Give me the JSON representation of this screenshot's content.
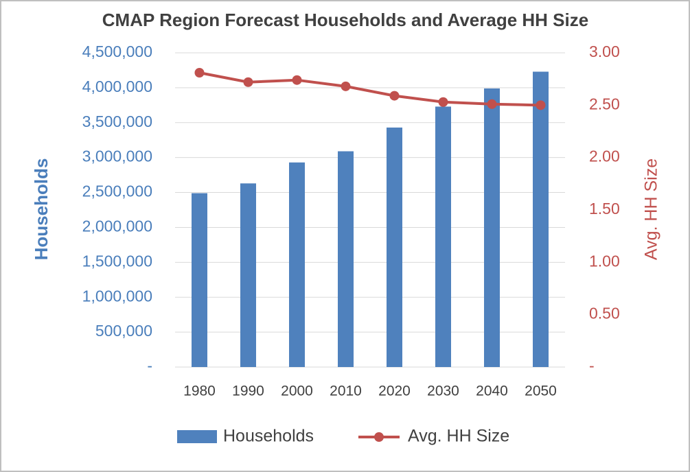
{
  "chart_data": {
    "type": "bar-line",
    "title": "CMAP Region Forecast Households and Average HH Size",
    "categories": [
      "1980",
      "1990",
      "2000",
      "2010",
      "2020",
      "2030",
      "2040",
      "2050"
    ],
    "series": [
      {
        "name": "Households",
        "type": "bar",
        "color": "#4f81bd",
        "values": [
          2490000,
          2630000,
          2930000,
          3090000,
          3430000,
          3730000,
          3990000,
          4230000
        ]
      },
      {
        "name": "Avg. HH Size",
        "type": "line",
        "axis": "y2",
        "color": "#c0504d",
        "values": [
          2.81,
          2.72,
          2.74,
          2.68,
          2.59,
          2.53,
          2.51,
          2.5
        ]
      }
    ],
    "ylabel": "Households",
    "y2label": "Avg. HH Size",
    "ylim": [
      0,
      4500000
    ],
    "yticks": [
      {
        "value": 0,
        "label": "-"
      },
      {
        "value": 500000,
        "label": "500,000"
      },
      {
        "value": 1000000,
        "label": "1,000,000"
      },
      {
        "value": 1500000,
        "label": "1,500,000"
      },
      {
        "value": 2000000,
        "label": "2,000,000"
      },
      {
        "value": 2500000,
        "label": "2,500,000"
      },
      {
        "value": 3000000,
        "label": "3,000,000"
      },
      {
        "value": 3500000,
        "label": "3,500,000"
      },
      {
        "value": 4000000,
        "label": "4,000,000"
      },
      {
        "value": 4500000,
        "label": "4,500,000"
      }
    ],
    "y2lim": [
      0,
      3
    ],
    "y2ticks": [
      {
        "value": 0,
        "label": "-"
      },
      {
        "value": 0.5,
        "label": "0.50"
      },
      {
        "value": 1,
        "label": "1.00"
      },
      {
        "value": 1.5,
        "label": "1.50"
      },
      {
        "value": 2,
        "label": "2.00"
      },
      {
        "value": 2.5,
        "label": "2.50"
      },
      {
        "value": 3,
        "label": "3.00"
      }
    ],
    "grid": true,
    "legend": "bottom"
  }
}
